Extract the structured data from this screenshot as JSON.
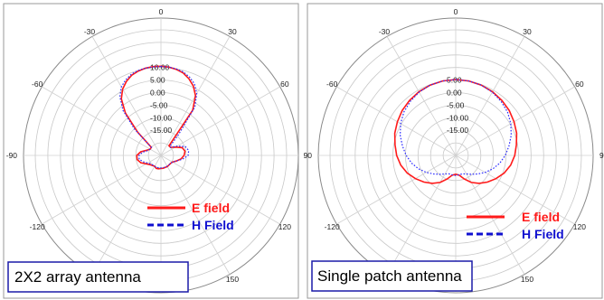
{
  "chart_data": [
    {
      "type": "polar-line",
      "caption": "2X2 array antenna",
      "angle_labels": [
        "0",
        "30",
        "60",
        "90",
        "120",
        "150",
        "180",
        "-150",
        "-120",
        "-90",
        "-60",
        "-30"
      ],
      "radial_tick_labels": [
        "10.00",
        "5.00",
        "0.00",
        "-5.00",
        "-10.00",
        "-15.00"
      ],
      "rlim": [
        -20,
        10
      ],
      "legend_position": "bottom-right",
      "series": [
        {
          "name": "E field",
          "color": "#ff1a1a",
          "style": "solid",
          "theta": [
            0,
            5,
            10,
            15,
            20,
            25,
            30,
            35,
            40,
            45,
            50,
            60,
            70,
            80,
            90,
            100,
            110,
            120,
            130,
            150,
            170,
            180,
            190,
            200,
            210,
            230,
            250,
            260,
            270,
            280,
            290,
            300,
            310,
            315,
            320,
            325,
            330,
            335,
            340,
            345,
            350,
            355
          ],
          "r": [
            10.5,
            10.3,
            9.8,
            9,
            7.5,
            5.5,
            2.5,
            -3,
            -20,
            -20,
            -20,
            -18.4,
            -16,
            -15.3,
            -15.8,
            -16.9,
            -18.5,
            -19.7,
            -20,
            -19.9,
            -19.8,
            -19.8,
            -19.6,
            -19.5,
            -20,
            -19.3,
            -16.5,
            -15.4,
            -15.4,
            -16.8,
            -19,
            -20,
            -20,
            -12,
            -3,
            2.5,
            5.5,
            7.5,
            9,
            9.8,
            10.3,
            10.5
          ]
        },
        {
          "name": "H Field",
          "color": "#2b2bff",
          "style": "dotted",
          "theta": [
            0,
            5,
            10,
            15,
            20,
            25,
            30,
            35,
            40,
            45,
            50,
            60,
            70,
            80,
            90,
            100,
            110,
            120,
            130,
            150,
            170,
            180,
            190,
            200,
            210,
            230,
            250,
            260,
            270,
            280,
            290,
            300,
            310,
            315,
            320,
            325,
            330,
            335,
            340,
            345,
            350,
            355
          ],
          "r": [
            10.4,
            10.3,
            10,
            9.4,
            8.2,
            6.5,
            3.5,
            -1.5,
            -14,
            -20,
            -20,
            -17.6,
            -14.7,
            -13.8,
            -14.2,
            -16.3,
            -18.5,
            -19.7,
            -20,
            -20,
            -20,
            -20,
            -20,
            -20,
            -20,
            -19.8,
            -17.5,
            -16.2,
            -16.3,
            -17.6,
            -19.4,
            -20,
            -20,
            -10,
            -1.5,
            3.5,
            6.5,
            8.2,
            9.4,
            10,
            10.3,
            10.4
          ]
        }
      ]
    },
    {
      "type": "polar-line",
      "caption": "Single patch antenna",
      "angle_labels": [
        "0",
        "30",
        "60",
        "90",
        "120",
        "150",
        "180",
        "-150",
        "-120",
        "-90",
        "-60",
        "-30"
      ],
      "radial_tick_labels": [
        "5.00",
        "0.00",
        "-5.00",
        "-10.00",
        "-15.00"
      ],
      "rlim": [
        -20,
        10
      ],
      "legend_position": "bottom-right",
      "series": [
        {
          "name": "E field",
          "color": "#ff1a1a",
          "style": "solid",
          "theta": [
            0,
            10,
            20,
            30,
            40,
            50,
            60,
            70,
            80,
            90,
            100,
            110,
            120,
            130,
            140,
            150,
            160,
            170,
            180,
            190,
            200,
            210,
            220,
            230,
            240,
            250,
            260,
            270,
            280,
            290,
            300,
            310,
            320,
            330,
            340,
            350
          ],
          "r": [
            5.2,
            5.1,
            4.8,
            4.3,
            3.6,
            2.8,
            1.8,
            0.8,
            -0.5,
            -1.5,
            -2.8,
            -4.5,
            -6.5,
            -8.5,
            -10.5,
            -12.6,
            -15,
            -17,
            -17.5,
            -17,
            -15,
            -12.6,
            -10.5,
            -8.5,
            -6.5,
            -4.5,
            -2.8,
            -1.5,
            -0.5,
            0.8,
            1.8,
            2.8,
            3.6,
            4.3,
            4.8,
            5.1
          ]
        },
        {
          "name": "H Field",
          "color": "#2b2bff",
          "style": "dotted",
          "theta": [
            0,
            10,
            20,
            30,
            40,
            50,
            60,
            70,
            80,
            90,
            100,
            110,
            120,
            130,
            140,
            150,
            160,
            170,
            180,
            190,
            200,
            210,
            220,
            230,
            240,
            250,
            260,
            270,
            280,
            290,
            300,
            310,
            320,
            330,
            340,
            350
          ],
          "r": [
            5.2,
            5.1,
            4.8,
            4.1,
            3.1,
            1.9,
            0.3,
            -1.5,
            -3.5,
            -5.3,
            -7.2,
            -9.3,
            -11.5,
            -13.5,
            -15.2,
            -16.5,
            -17.2,
            -17.2,
            -17,
            -17.2,
            -17.2,
            -16.5,
            -15.2,
            -13.5,
            -11.5,
            -9.3,
            -7.2,
            -5.3,
            -3.5,
            -1.5,
            0.3,
            1.9,
            3.1,
            4.1,
            4.8,
            5.1
          ]
        }
      ]
    }
  ]
}
